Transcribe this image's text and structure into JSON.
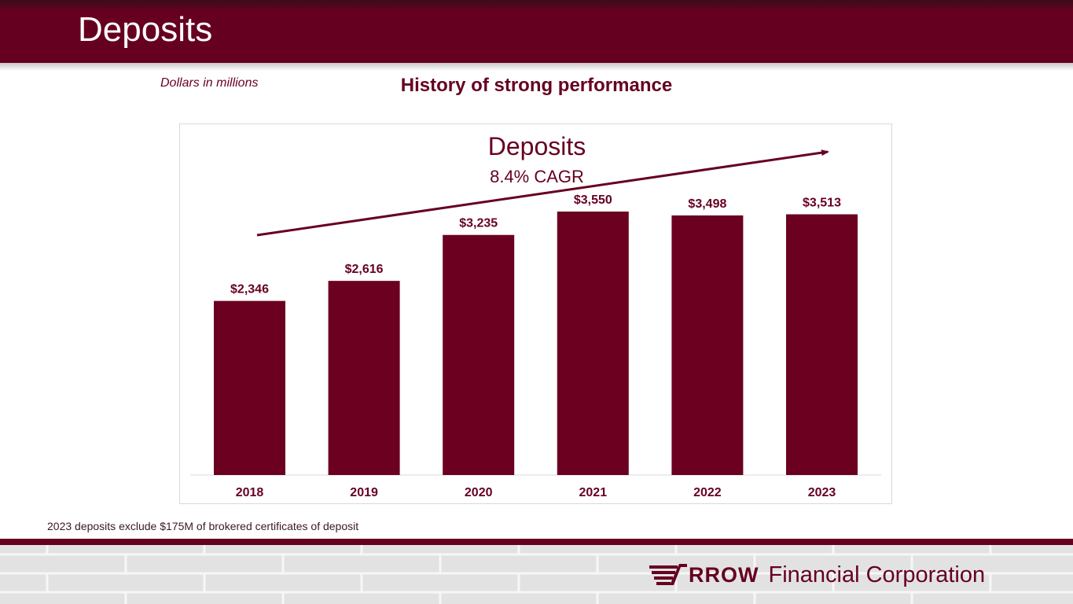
{
  "page": {
    "title": "Deposits",
    "units_note": "Dollars in millions",
    "headline": "History of strong performance",
    "footnote": "2023 deposits exclude $175M of brokered certificates of deposit"
  },
  "logo": {
    "brand": "RROW",
    "company": "Financial Corporation"
  },
  "colors": {
    "accent": "#660020",
    "bar": "#6b0020",
    "header": "#660020"
  },
  "chart_data": {
    "type": "bar",
    "title": "Deposits",
    "subtitle": "8.4% CAGR",
    "categories": [
      "2018",
      "2019",
      "2020",
      "2021",
      "2022",
      "2023"
    ],
    "values": [
      2346,
      2616,
      3235,
      3550,
      3498,
      3513
    ],
    "data_labels": [
      "$2,346",
      "$2,616",
      "$3,235",
      "$3,550",
      "$3,498",
      "$3,513"
    ],
    "ylim": [
      0,
      3550
    ],
    "grid": false,
    "legend": "none",
    "trend_arrow": true
  }
}
